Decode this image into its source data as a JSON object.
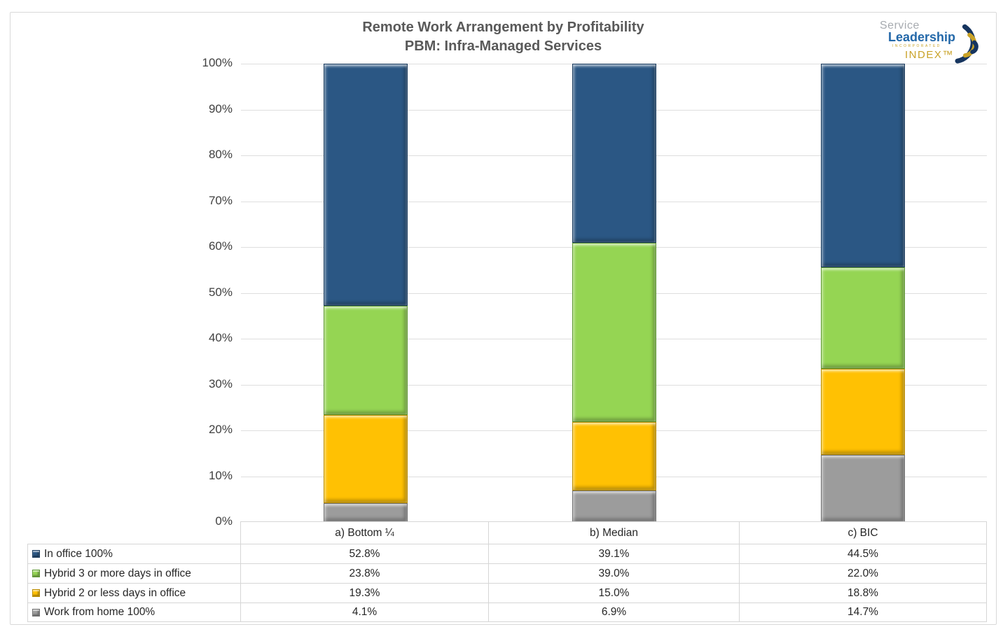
{
  "title": {
    "line1": "Remote Work Arrangement by Profitability",
    "line2": "PBM: Infra-Managed Services"
  },
  "logo": {
    "word1": "Service",
    "word2": "Leadership",
    "word3": "INCORPORATED",
    "word4": "INDEX™"
  },
  "chart_data": {
    "type": "bar",
    "stacked": true,
    "title": "Remote Work Arrangement by Profitability",
    "subtitle": "PBM: Infra-Managed Services",
    "categories": [
      "a) Bottom ¼",
      "b) Median",
      "c) BIC"
    ],
    "series": [
      {
        "name": "In office 100%",
        "color": "#2B5784",
        "border": "#1B3C5F",
        "values": [
          52.8,
          39.1,
          44.5
        ]
      },
      {
        "name": "Hybrid 3 or more days in office",
        "color": "#95D553",
        "border": "#5E9732",
        "values": [
          23.8,
          39.0,
          22.0
        ]
      },
      {
        "name": "Hybrid 2 or less days in office",
        "color": "#FFC103",
        "border": "#B98C00",
        "values": [
          19.3,
          15.0,
          18.8
        ]
      },
      {
        "name": "Work from home 100%",
        "color": "#9C9C9C",
        "border": "#707070",
        "values": [
          4.1,
          6.9,
          14.7
        ]
      }
    ],
    "ylim": [
      0,
      100
    ],
    "ytick_step": 10,
    "yticks": [
      "0%",
      "10%",
      "20%",
      "30%",
      "40%",
      "50%",
      "60%",
      "70%",
      "80%",
      "90%",
      "100%"
    ],
    "grid": true,
    "ylabel": "",
    "xlabel": "",
    "value_suffix": "%",
    "value_decimals": 1,
    "legend_position": "table-left-column"
  }
}
